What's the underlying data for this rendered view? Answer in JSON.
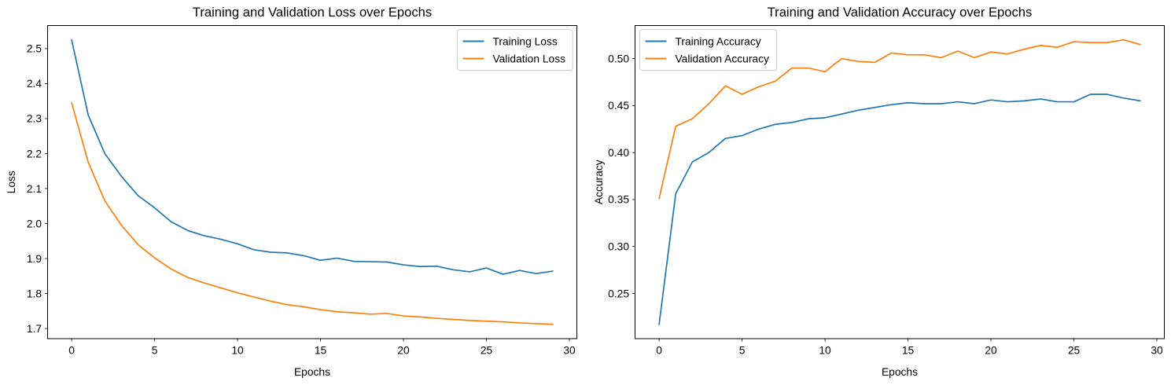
{
  "figure": {
    "background": "#ffffff",
    "axis_color": "#000000",
    "legend_border_color": "#cccccc",
    "legend_background": "#ffffff"
  },
  "chart_data": [
    {
      "type": "line",
      "title": "Training and Validation Loss over Epochs",
      "xlabel": "Epochs",
      "ylabel": "Loss",
      "grid": false,
      "legend": {
        "loc": "upper-right",
        "entries": [
          "Training Loss",
          "Validation Loss"
        ]
      },
      "xlim": [
        -1.45,
        30.45
      ],
      "ylim": [
        1.671,
        2.566
      ],
      "xticks": [
        0,
        5,
        10,
        15,
        20,
        25,
        30
      ],
      "yticks": [
        1.7,
        1.8,
        1.9,
        2.0,
        2.1,
        2.2,
        2.3,
        2.4,
        2.5
      ],
      "ytick_labels": [
        "1.7",
        "1.8",
        "1.9",
        "2.0",
        "2.1",
        "2.2",
        "2.3",
        "2.4",
        "2.5"
      ],
      "x": [
        0,
        1,
        2,
        3,
        4,
        5,
        6,
        7,
        8,
        9,
        10,
        11,
        12,
        13,
        14,
        15,
        16,
        17,
        18,
        19,
        20,
        21,
        22,
        23,
        24,
        25,
        26,
        27,
        28,
        29
      ],
      "series": [
        {
          "name": "Training Loss",
          "color": "#1f77b4",
          "values": [
            2.525,
            2.31,
            2.2,
            2.135,
            2.08,
            2.045,
            2.005,
            1.98,
            1.965,
            1.955,
            1.942,
            1.925,
            1.918,
            1.916,
            1.908,
            1.895,
            1.901,
            1.892,
            1.891,
            1.89,
            1.882,
            1.877,
            1.878,
            1.868,
            1.862,
            1.873,
            1.855,
            1.866,
            1.857,
            1.864
          ]
        },
        {
          "name": "Validation Loss",
          "color": "#ff7f0e",
          "values": [
            2.345,
            2.175,
            2.065,
            1.995,
            1.94,
            1.902,
            1.87,
            1.846,
            1.83,
            1.816,
            1.802,
            1.79,
            1.778,
            1.768,
            1.762,
            1.754,
            1.748,
            1.745,
            1.741,
            1.743,
            1.736,
            1.733,
            1.729,
            1.726,
            1.723,
            1.721,
            1.719,
            1.716,
            1.714,
            1.712
          ]
        }
      ]
    },
    {
      "type": "line",
      "title": "Training and Validation Accuracy over Epochs",
      "xlabel": "Epochs",
      "ylabel": "Accuracy",
      "grid": false,
      "legend": {
        "loc": "upper-left",
        "entries": [
          "Training Accuracy",
          "Validation Accuracy"
        ]
      },
      "xlim": [
        -1.45,
        30.45
      ],
      "ylim": [
        0.2019,
        0.5352
      ],
      "xticks": [
        0,
        5,
        10,
        15,
        20,
        25,
        30
      ],
      "yticks": [
        0.25,
        0.3,
        0.35,
        0.4,
        0.45,
        0.5
      ],
      "ytick_labels": [
        "0.25",
        "0.30",
        "0.35",
        "0.40",
        "0.45",
        "0.50"
      ],
      "x": [
        0,
        1,
        2,
        3,
        4,
        5,
        6,
        7,
        8,
        9,
        10,
        11,
        12,
        13,
        14,
        15,
        16,
        17,
        18,
        19,
        20,
        21,
        22,
        23,
        24,
        25,
        26,
        27,
        28,
        29
      ],
      "series": [
        {
          "name": "Training Accuracy",
          "color": "#1f77b4",
          "values": [
            0.217,
            0.356,
            0.39,
            0.4,
            0.415,
            0.418,
            0.425,
            0.43,
            0.432,
            0.436,
            0.437,
            0.441,
            0.445,
            0.448,
            0.451,
            0.453,
            0.452,
            0.452,
            0.454,
            0.452,
            0.456,
            0.454,
            0.455,
            0.457,
            0.454,
            0.454,
            0.462,
            0.462,
            0.458,
            0.455
          ]
        },
        {
          "name": "Validation Accuracy",
          "color": "#ff7f0e",
          "values": [
            0.351,
            0.428,
            0.436,
            0.452,
            0.471,
            0.462,
            0.47,
            0.476,
            0.49,
            0.49,
            0.486,
            0.5,
            0.497,
            0.496,
            0.506,
            0.504,
            0.504,
            0.501,
            0.508,
            0.501,
            0.507,
            0.505,
            0.51,
            0.514,
            0.512,
            0.518,
            0.517,
            0.517,
            0.52,
            0.515
          ]
        }
      ]
    }
  ]
}
